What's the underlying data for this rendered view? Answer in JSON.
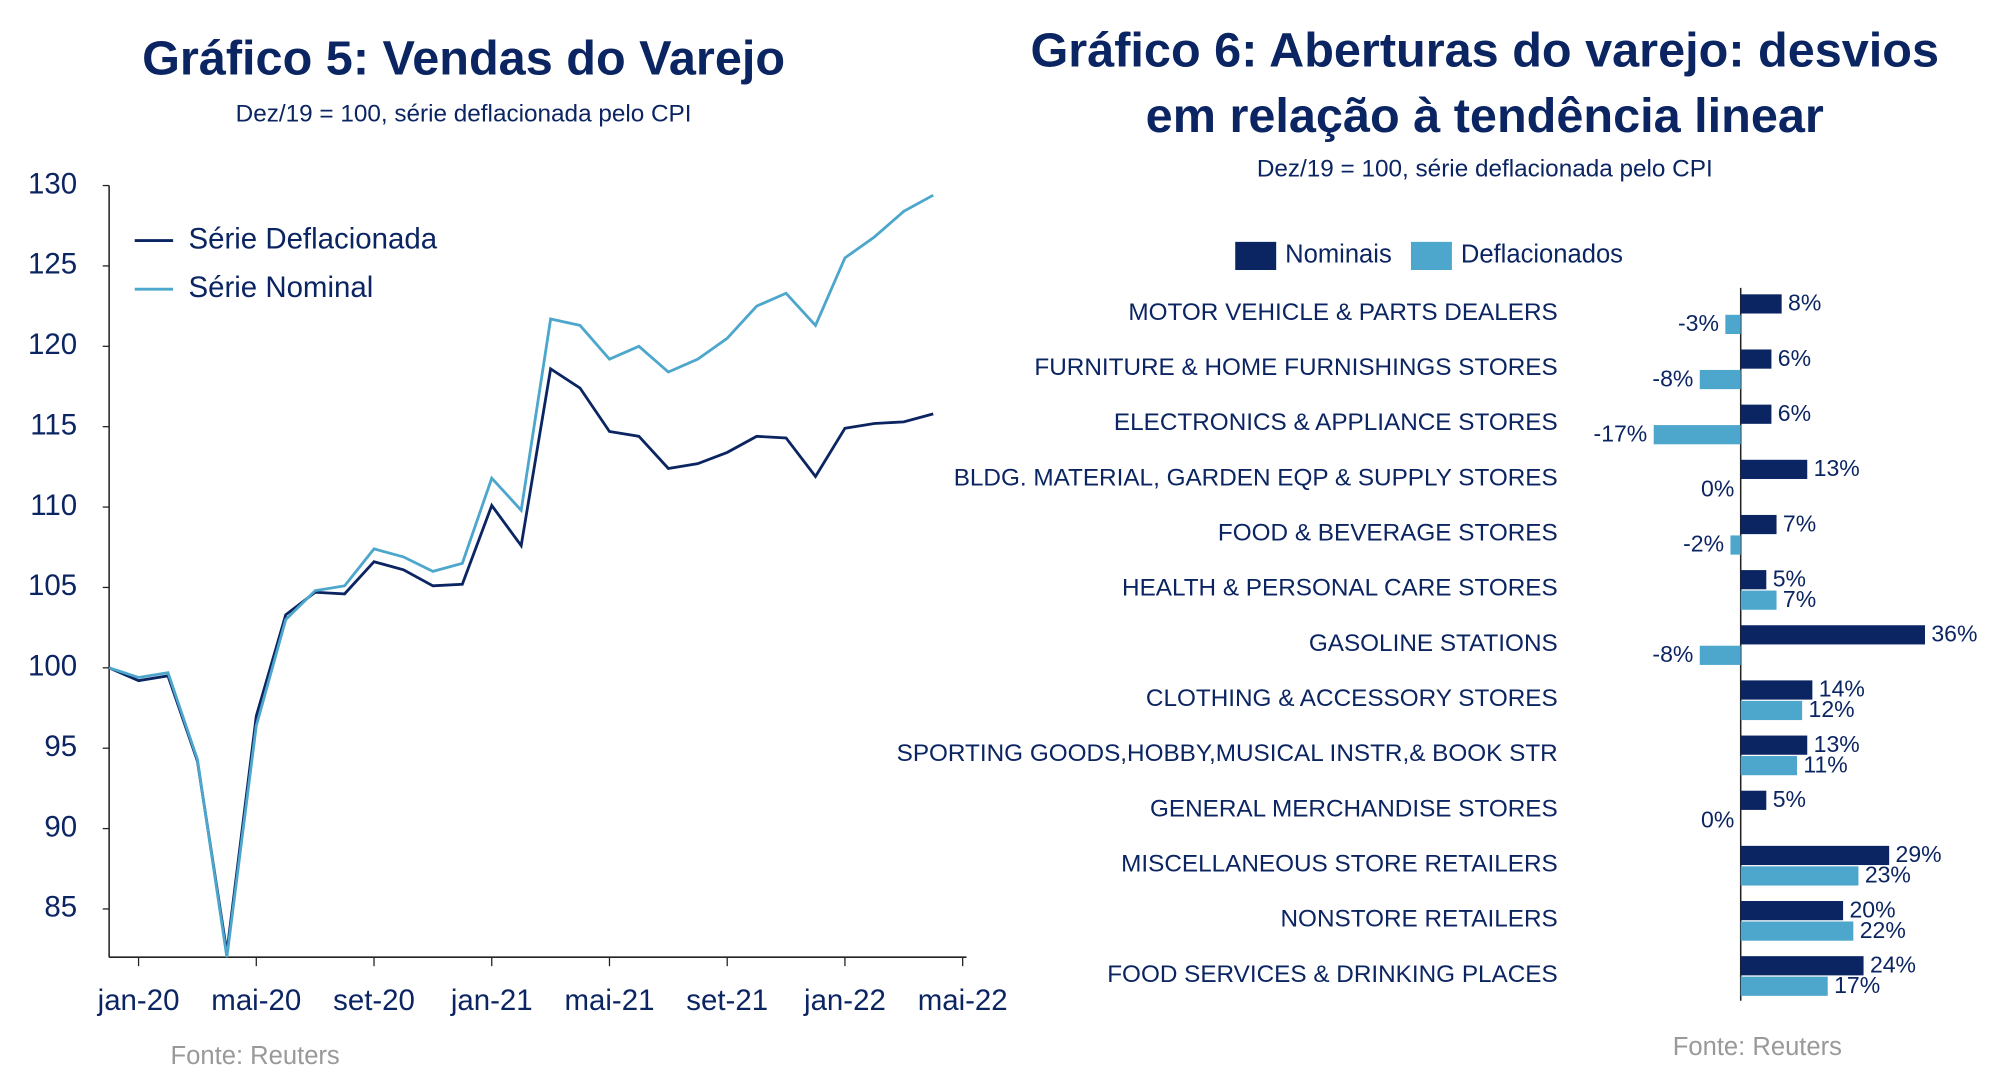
{
  "chart_data": [
    {
      "type": "line",
      "title": "Gráfico 5: Vendas do Varejo",
      "subtitle": "Dez/19 = 100, série deflacionada pelo CPI",
      "source": "Fonte:  Reuters",
      "categories": [
        null,
        "jan-20",
        null,
        null,
        null,
        "mai-20",
        null,
        null,
        null,
        "set-20",
        null,
        null,
        null,
        "jan-21",
        null,
        null,
        null,
        "mai-21",
        null,
        null,
        null,
        "set-21",
        null,
        null,
        null,
        "jan-22",
        null,
        null,
        null,
        "mai-22"
      ],
      "series": [
        {
          "name": "Série Deflacionada",
          "color": "#0b2462",
          "values": [
            100,
            99.2,
            99.5,
            94.2,
            82.3,
            97,
            103.3,
            104.7,
            104.6,
            106.6,
            106.1,
            105.1,
            105.2,
            110.1,
            107.6,
            118.6,
            117.4,
            114.7,
            114.4,
            112.4,
            112.7,
            113.4,
            114.4,
            114.3,
            111.9,
            114.9,
            115.2,
            115.3,
            115.8,
            null
          ]
        },
        {
          "name": "Série Nominal",
          "color": "#4da6cc",
          "values": [
            100,
            99.4,
            99.7,
            94.3,
            82.0,
            96.4,
            103.0,
            104.8,
            105.1,
            107.4,
            106.9,
            106.0,
            106.5,
            111.8,
            109.8,
            121.7,
            121.3,
            119.2,
            120.0,
            118.4,
            119.2,
            120.5,
            122.5,
            123.3,
            121.3,
            125.5,
            126.8,
            128.4,
            129.4,
            null
          ]
        }
      ],
      "ylim": [
        82,
        130
      ],
      "yticks": [
        85,
        90,
        95,
        100,
        105,
        110,
        115,
        120,
        125,
        130
      ],
      "grid": false,
      "legend": "top-left"
    },
    {
      "type": "hbar",
      "title": [
        "Gráfico 6: Aberturas do varejo: desvios",
        "em relação à tendência linear"
      ],
      "subtitle": "Dez/19 = 100, série deflacionada pelo CPI",
      "source": "Fonte:  Reuters",
      "categories": [
        "MOTOR VEHICLE & PARTS DEALERS",
        "FURNITURE & HOME FURNISHINGS STORES",
        "ELECTRONICS & APPLIANCE STORES",
        "BLDG. MATERIAL, GARDEN EQP & SUPPLY STORES",
        "FOOD & BEVERAGE STORES",
        "HEALTH & PERSONAL CARE STORES",
        "GASOLINE STATIONS",
        "CLOTHING & ACCESSORY STORES",
        "SPORTING GOODS,HOBBY,MUSICAL  INSTR,& BOOK STR",
        "GENERAL MERCHANDISE STORES",
        "MISCELLANEOUS STORE RETAILERS",
        "NONSTORE RETAILERS",
        "FOOD SERVICES & DRINKING PLACES"
      ],
      "series": [
        {
          "name": "Nominais",
          "color": "#0b2462",
          "values": [
            8,
            6,
            6,
            13,
            7,
            5,
            36,
            14,
            13,
            5,
            29,
            20,
            24
          ],
          "value_labels": [
            "8%",
            "6%",
            "6%",
            "13%",
            "7%",
            "5%",
            "36%",
            "14%",
            "13%",
            "5%",
            "29%",
            "20%",
            "24%"
          ]
        },
        {
          "name": "Deflacionados",
          "color": "#4da6cc",
          "values": [
            -3,
            -8,
            -17,
            0,
            -2,
            7,
            -8,
            12,
            11,
            0,
            23,
            22,
            17
          ],
          "value_labels": [
            "-3%",
            "-8%",
            "-17%",
            "0%",
            "-2%",
            "7%",
            "-8%",
            "12%",
            "11%",
            "0%",
            "23%",
            "22%",
            "17%"
          ]
        }
      ],
      "xlim": [
        -18,
        37
      ],
      "legend": "top"
    }
  ]
}
